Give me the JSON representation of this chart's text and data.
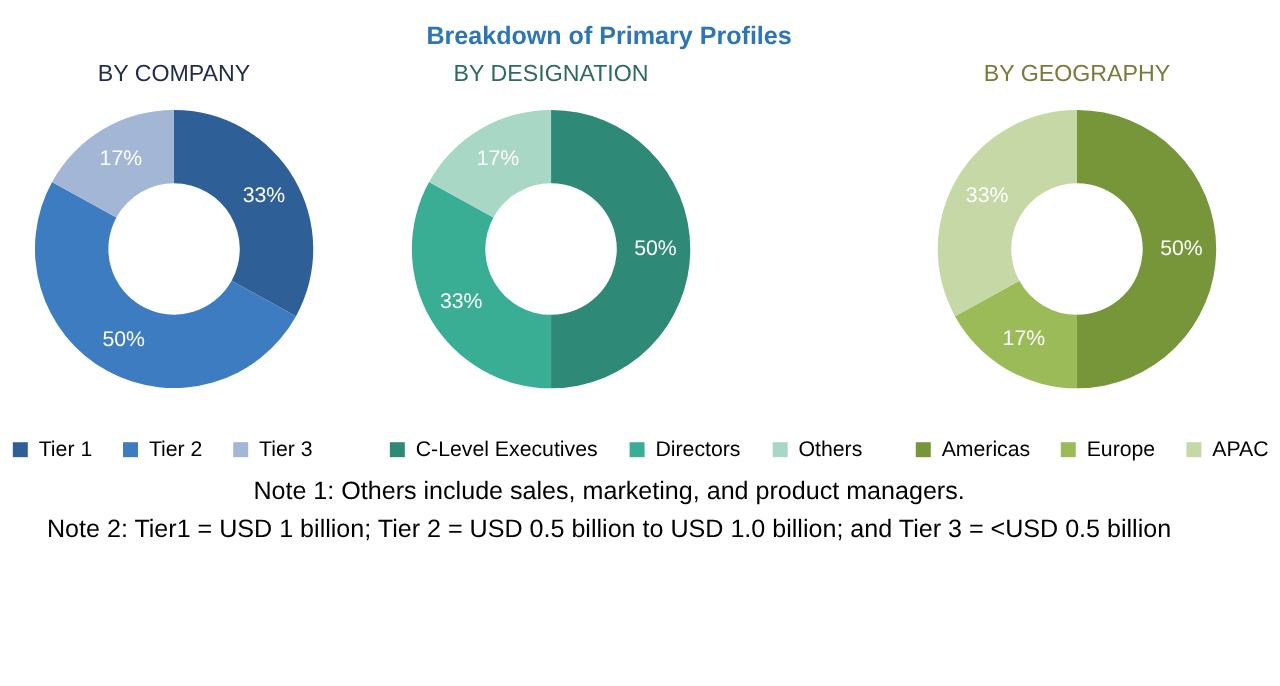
{
  "chart_data": [
    {
      "type": "donut",
      "title": "BY COMPANY",
      "categories": [
        "Tier 1",
        "Tier 2",
        "Tier 3"
      ],
      "values": [
        33,
        50,
        17
      ],
      "colors": [
        "#2e5f96",
        "#3d7cc0",
        "#a3b6d6"
      ],
      "value_labels": [
        "33%",
        "50%",
        "17%"
      ],
      "legend": "bottom",
      "annotations": [
        "Breakdown of Primary Profiles",
        "Note 1: Others include sales, marketing, and product managers.",
        "Note 2: Tier1 = USD 1 billion; Tier 2 = USD 0.5 billion to USD 1.0 billion; and Tier 3 = <USD 0.5 billion"
      ]
    },
    {
      "type": "donut",
      "title": "BY DESIGNATION",
      "categories": [
        "C-Level Executives",
        "Directors",
        "Others"
      ],
      "values": [
        50,
        33,
        17
      ],
      "colors": [
        "#2e8a76",
        "#3aae94",
        "#a8d7c6"
      ],
      "value_labels": [
        "50%",
        "33%",
        "17%"
      ],
      "legend": "bottom"
    },
    {
      "type": "donut",
      "title": "BY GEOGRAPHY",
      "categories": [
        "Americas",
        "Europe",
        "APAC"
      ],
      "values": [
        50,
        17,
        33
      ],
      "colors": [
        "#779639",
        "#9bbb58",
        "#c6d8a5"
      ],
      "value_labels": [
        "50%",
        "17%",
        "33%"
      ],
      "legend": "bottom"
    }
  ]
}
